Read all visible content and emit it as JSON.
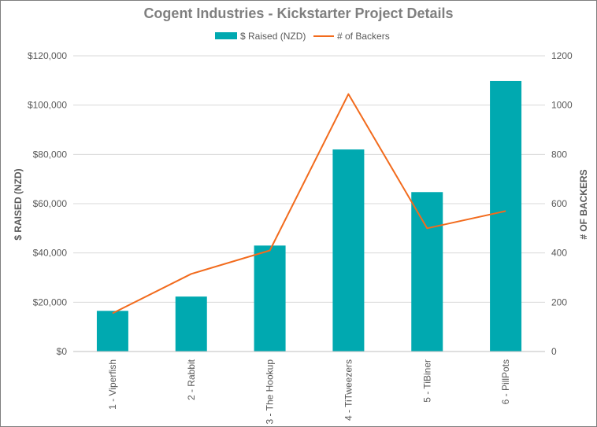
{
  "chart_data": {
    "type": "bar",
    "title": "Cogent Industries - Kickstarter Project Details",
    "categories": [
      "1 - Viperfish",
      "2 - Rabbit",
      "3 - The Hookup",
      "4 - TiTweezers",
      "5 - TiBiner",
      "6 - PillPots"
    ],
    "series": [
      {
        "name": "$ Raised (NZD)",
        "type": "bar",
        "axis": "left",
        "color": "#00a9b0",
        "values": [
          16500,
          22300,
          43000,
          82000,
          64700,
          109800
        ]
      },
      {
        "name": "# of Backers",
        "type": "line",
        "axis": "right",
        "color": "#f26b1d",
        "values": [
          155,
          315,
          410,
          1045,
          500,
          570
        ]
      }
    ],
    "ylabel_left": "$ RAISED (NZD)",
    "ylabel_right": "# OF BACKERS",
    "ylim_left": [
      0,
      120000
    ],
    "ylim_right": [
      0,
      1200
    ],
    "yticks_left": [
      "$0",
      "$20,000",
      "$40,000",
      "$60,000",
      "$80,000",
      "$100,000",
      "$120,000"
    ],
    "yticks_right": [
      "0",
      "200",
      "400",
      "600",
      "800",
      "1000",
      "1200"
    ],
    "grid": true,
    "legend_position": "top"
  }
}
